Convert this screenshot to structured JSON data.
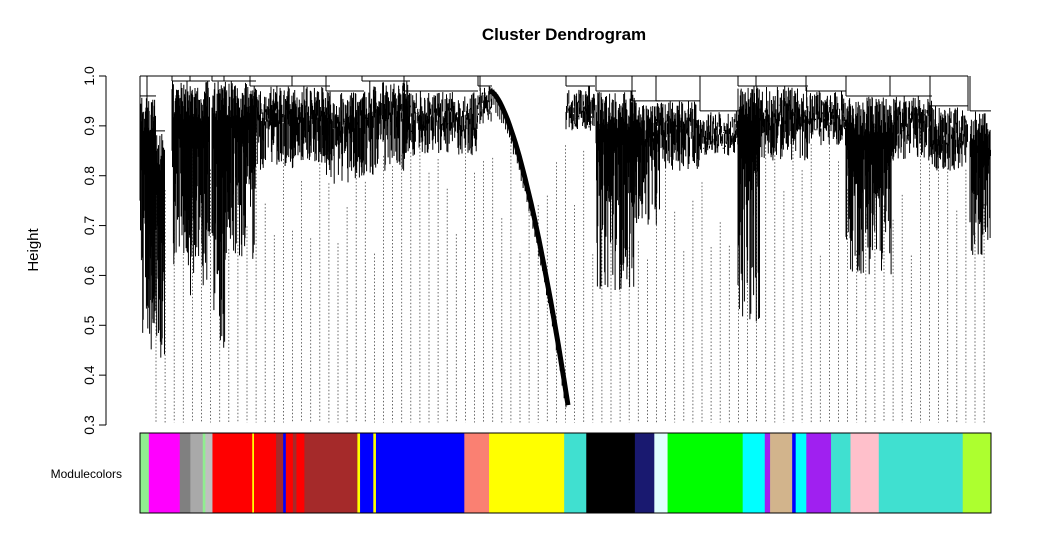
{
  "chart_data": {
    "type": "dendrogram",
    "title": "Cluster Dendrogram",
    "xlabel": "",
    "ylabel": "Height",
    "ylim": [
      0.3,
      1.0
    ],
    "y_ticks": [
      "0.3",
      "0.4",
      "0.5",
      "0.6",
      "0.7",
      "0.8",
      "0.9",
      "1.0"
    ],
    "grid": false,
    "legend": "none",
    "merge_height_top": 1.0,
    "color_bar_label": "Modulecolors",
    "module_colors": [
      {
        "color": "#90EE90",
        "width": 1.0
      },
      {
        "color": "#FF00FF",
        "width": 3.5
      },
      {
        "color": "#808080",
        "width": 1.2
      },
      {
        "color": "#A9A9A9",
        "width": 1.4
      },
      {
        "color": "#90EE90",
        "width": 0.3
      },
      {
        "color": "#C0C0C0",
        "width": 0.8
      },
      {
        "color": "#FF0000",
        "width": 4.5
      },
      {
        "color": "#FFFF00",
        "width": 0.2
      },
      {
        "color": "#FF0000",
        "width": 2.5
      },
      {
        "color": "#A52A2A",
        "width": 0.8
      },
      {
        "color": "#0000FF",
        "width": 0.3
      },
      {
        "color": "#FF0000",
        "width": 0.8
      },
      {
        "color": "#A52A2A",
        "width": 0.4
      },
      {
        "color": "#FF0000",
        "width": 0.9
      },
      {
        "color": "#A52A2A",
        "width": 6.0
      },
      {
        "color": "#FFFF00",
        "width": 0.3
      },
      {
        "color": "#0000FF",
        "width": 1.5
      },
      {
        "color": "#FFFF00",
        "width": 0.3
      },
      {
        "color": "#0000FF",
        "width": 10.0
      },
      {
        "color": "#FA8072",
        "width": 2.8
      },
      {
        "color": "#FFFF00",
        "width": 8.5
      },
      {
        "color": "#40E0D0",
        "width": 2.5
      },
      {
        "color": "#000000",
        "width": 5.5
      },
      {
        "color": "#191970",
        "width": 2.2
      },
      {
        "color": "#E0FFFF",
        "width": 1.5
      },
      {
        "color": "#00FF00",
        "width": 8.5
      },
      {
        "color": "#00FFFF",
        "width": 2.5
      },
      {
        "color": "#A020F0",
        "width": 0.6
      },
      {
        "color": "#D2B48C",
        "width": 2.5
      },
      {
        "color": "#0000FF",
        "width": 0.4
      },
      {
        "color": "#00FFFF",
        "width": 1.2
      },
      {
        "color": "#A020F0",
        "width": 2.8
      },
      {
        "color": "#40E0D0",
        "width": 2.2
      },
      {
        "color": "#FFC0CB",
        "width": 3.2
      },
      {
        "color": "#40E0D0",
        "width": 9.5
      },
      {
        "color": "#ADFF2F",
        "width": 3.2
      }
    ]
  }
}
